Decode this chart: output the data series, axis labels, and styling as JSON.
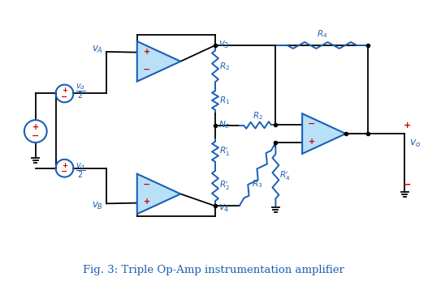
{
  "title": "Fig. 3: Triple Op-Amp instrumentation amplifier",
  "title_color": "#1a5fb4",
  "title_fontsize": 9.5,
  "bg_color": "#ffffff",
  "opamp_fill": "#b8e0f7",
  "opamp_edge": "#1a5fb4",
  "resistor_color": "#1a5fb4",
  "source_color": "#1a5fb4",
  "plus_color": "#cc0000",
  "minus_color": "#cc0000",
  "label_color": "#1a5fb4",
  "wire_color": "#000000",
  "lw_wire": 1.3,
  "lw_res": 1.4,
  "lw_op": 1.5
}
